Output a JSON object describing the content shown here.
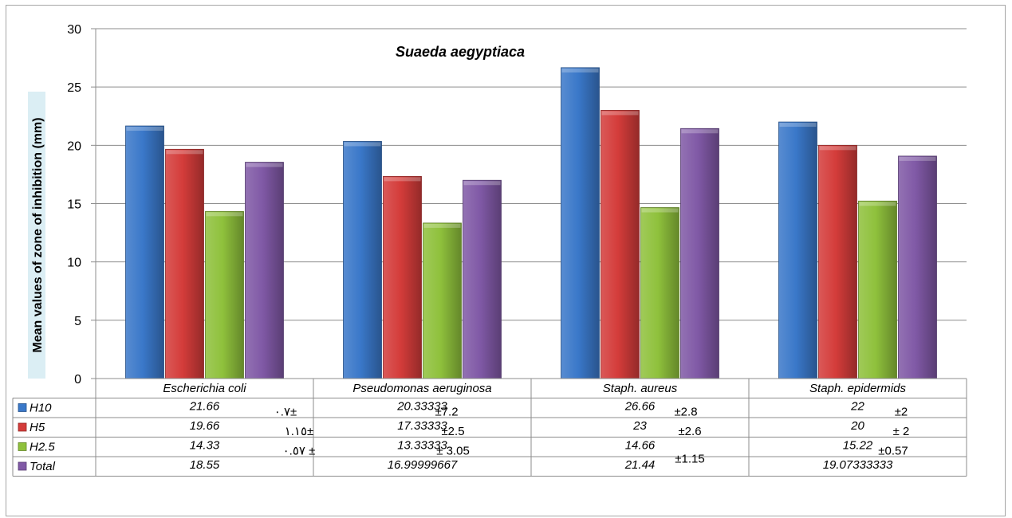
{
  "chart_data": {
    "type": "bar",
    "title": "Suaeda aegyptiaca",
    "ylabel": "Mean values of zone of inhibition (mm)",
    "xlabel": "",
    "ylim": [
      0,
      30
    ],
    "yticks": [
      0,
      5,
      10,
      15,
      20,
      25,
      30
    ],
    "grid": true,
    "legend": "data-table-below",
    "categories": [
      "Escherichia coli",
      "Pseudomonas aeruginosa",
      "Staph. aureus",
      "Staph. epidermids"
    ],
    "series": [
      {
        "name": "H10",
        "color": "#3a78c9",
        "values": [
          21.66,
          20.33333,
          26.66,
          22
        ],
        "table_text": [
          "21.66",
          "20.33333",
          "26.66",
          "22"
        ]
      },
      {
        "name": "H5",
        "color": "#d43c3a",
        "values": [
          19.66,
          17.33333,
          23,
          20
        ],
        "table_text": [
          "19.66",
          "17.33333",
          "23",
          "20"
        ]
      },
      {
        "name": "H2.5",
        "color": "#8fc13c",
        "values": [
          14.33,
          13.33333,
          14.66,
          15.22
        ],
        "table_text": [
          "14.33",
          "13.33333",
          "14.66",
          "15.22"
        ]
      },
      {
        "name": "Total",
        "color": "#8059a6",
        "values": [
          18.55,
          16.99999667,
          21.44,
          19.07333333
        ],
        "table_text": [
          "18.55",
          "16.99999667",
          "21.44",
          "19.07333333"
        ]
      }
    ],
    "annotations": [
      [
        "٠.٧±",
        "±7.2",
        "±2.8",
        "±2"
      ],
      [
        "١.١٥±",
        "±2.5",
        "±2.6",
        "± 2"
      ],
      [
        "٠.٥٧ ±",
        "± 3.05",
        "±1.15",
        "±0.57"
      ]
    ]
  }
}
